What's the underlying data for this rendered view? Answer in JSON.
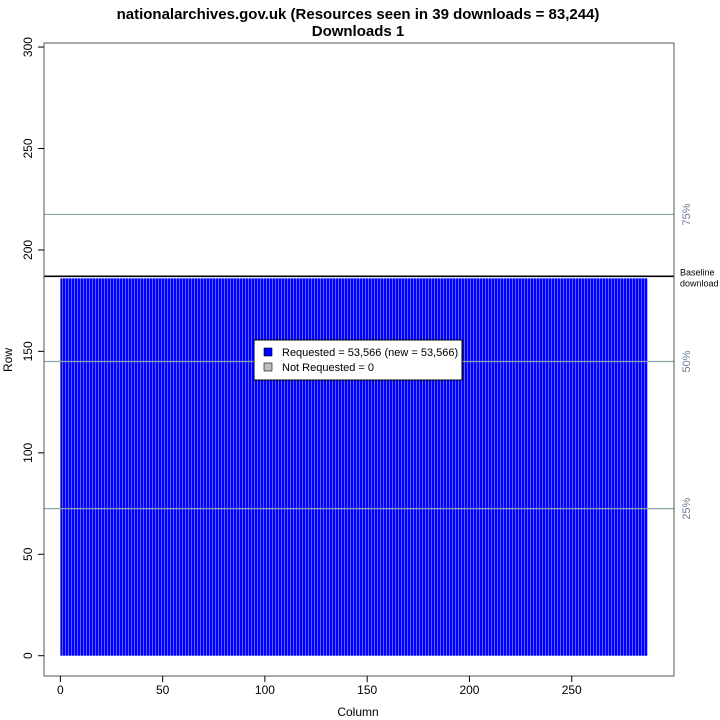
{
  "chart_data": {
    "type": "heatmap",
    "title": "nationalarchives.gov.uk (Resources seen in 39 downloads = 83,244)",
    "subtitle": "Downloads 1",
    "xlabel": "Column",
    "ylabel": "Row",
    "xlim": [
      -8,
      300
    ],
    "ylim": [
      -10,
      302
    ],
    "x_ticks": [
      0,
      50,
      100,
      150,
      200,
      250
    ],
    "y_ticks": [
      0,
      50,
      100,
      150,
      200,
      250,
      300
    ],
    "requested_region": {
      "x_min": 0,
      "x_max": 287,
      "y_min": 0,
      "y_max": 186
    },
    "baseline": {
      "y": 187,
      "label_lines": [
        "Baseline",
        "download"
      ]
    },
    "percentile_lines": [
      {
        "label": "25%",
        "y": 72.5
      },
      {
        "label": "50%",
        "y": 145
      },
      {
        "label": "75%",
        "y": 217.5
      }
    ],
    "legend": {
      "placement": "center",
      "items": [
        {
          "label": "Requested = 53,566 (new = 53,566)",
          "color": "#0000ff"
        },
        {
          "label": "Not Requested = 0",
          "color": "#bebebe"
        }
      ]
    },
    "colors": {
      "requested": "#0000ff",
      "requested_stripe": "#5a5aff",
      "percentile_line": "#8aa3a8",
      "percentile_text": "#6c7f96"
    },
    "grid": false
  }
}
